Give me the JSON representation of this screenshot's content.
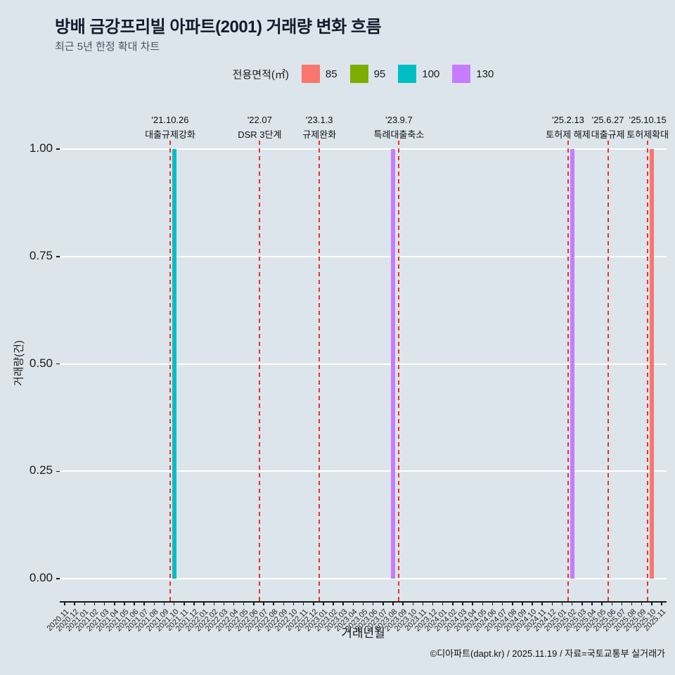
{
  "page": {
    "background": "#DCE5EB"
  },
  "footer": {
    "credit": "©디아파트(dapt.kr) / 2025.11.19 / 자료=국토교통부 실거래가"
  },
  "chart_data": {
    "type": "bar",
    "title": "방배 금강프리빌 아파트(2001) 거래량 변화 흐름",
    "subtitle": "최근 5년 한정 확대 차트",
    "xlabel": "거래년월",
    "ylabel": "거래량(건)",
    "ylim": [
      0,
      1.0
    ],
    "yticks": [
      "0.00",
      "0.25",
      "0.50",
      "0.75",
      "1.00"
    ],
    "grid": "on",
    "legend": {
      "title": "전용면적(㎡)",
      "position": "top",
      "items": [
        {
          "label": "85",
          "color": "#F8766D"
        },
        {
          "label": "95",
          "color": "#7CAE00"
        },
        {
          "label": "100",
          "color": "#00BFC4"
        },
        {
          "label": "130",
          "color": "#C77CFF"
        }
      ]
    },
    "x_categories": [
      "2020.11",
      "2020.12",
      "2021.01",
      "2021.02",
      "2021.03",
      "2021.04",
      "2021.05",
      "2021.06",
      "2021.07",
      "2021.08",
      "2021.09",
      "2021.10",
      "2021.11",
      "2021.12",
      "2022.01",
      "2022.02",
      "2022.03",
      "2022.04",
      "2022.05",
      "2022.06",
      "2022.07",
      "2022.08",
      "2022.09",
      "2022.10",
      "2022.11",
      "2022.12",
      "2023.01",
      "2023.02",
      "2023.03",
      "2023.04",
      "2023.05",
      "2023.06",
      "2023.07",
      "2023.08",
      "2023.09",
      "2023.10",
      "2023.11",
      "2023.12",
      "2024.01",
      "2024.02",
      "2024.03",
      "2024.04",
      "2024.05",
      "2024.06",
      "2024.07",
      "2024.08",
      "2024.09",
      "2024.10",
      "2024.11",
      "2024.12",
      "2025.01",
      "2025.02",
      "2025.03",
      "2025.04",
      "2025.05",
      "2025.06",
      "2025.07",
      "2025.08",
      "2025.09",
      "2025.10",
      "2025.11"
    ],
    "bars": [
      {
        "month": "2021.10",
        "area": "100",
        "value": 1.0,
        "color": "#00BFC4"
      },
      {
        "month": "2023.08",
        "area": "130",
        "value": 1.0,
        "color": "#C77CFF"
      },
      {
        "month": "2025.02",
        "area": "130",
        "value": 1.0,
        "color": "#C77CFF"
      },
      {
        "month": "2025.10",
        "area": "85",
        "value": 1.0,
        "color": "#F8766D"
      }
    ],
    "events": [
      {
        "date": "'21.10.26",
        "label": "대출규제강화",
        "month": "2021.10"
      },
      {
        "date": "'22.07",
        "label": "DSR 3단계",
        "month": "2022.07"
      },
      {
        "date": "'23.1.3",
        "label": "규제완화",
        "month": "2023.01"
      },
      {
        "date": "'23.9.7",
        "label": "특례대출축소",
        "month": "2023.09"
      },
      {
        "date": "'25.2.13",
        "label": "토허제 해제",
        "month": "2025.02"
      },
      {
        "date": "'25.6.27",
        "label": "대출규제",
        "month": "2025.06"
      },
      {
        "date": "'25.10.15",
        "label": "토허제확대",
        "month": "2025.10"
      }
    ],
    "colors": {
      "grid": "#FFFFFF",
      "axis": "#1A1A1A",
      "event_line": "#EE3124"
    }
  }
}
